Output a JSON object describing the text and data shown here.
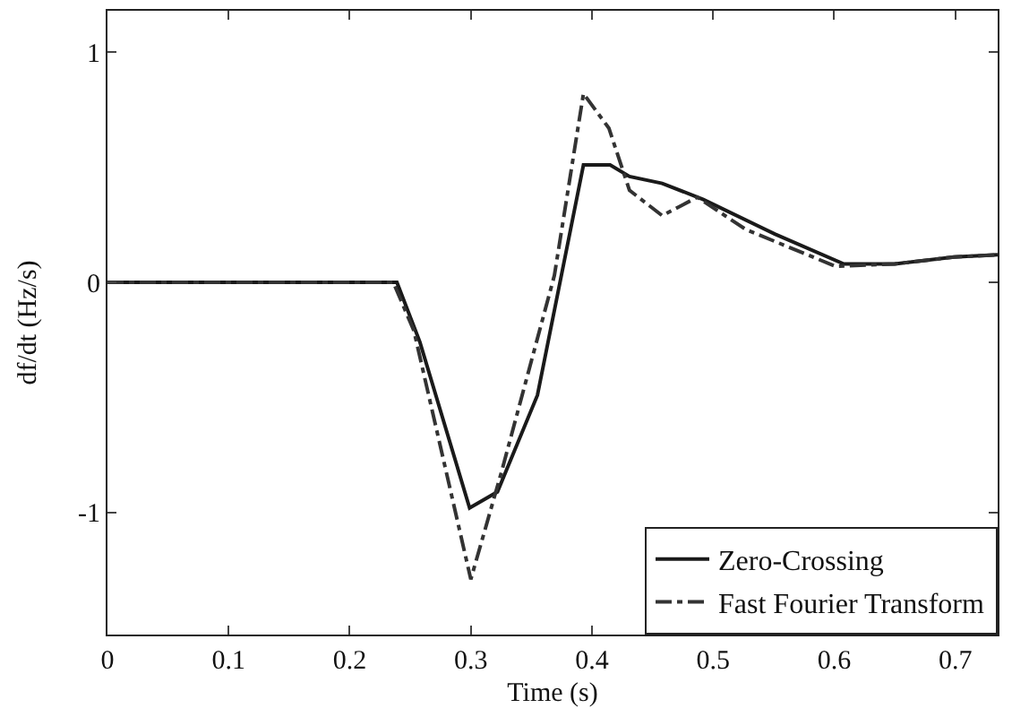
{
  "chart_data": {
    "type": "line",
    "xlabel": "Time (s)",
    "ylabel": "df/dt (Hz/s)",
    "xlim": [
      0,
      0.735
    ],
    "xticks": [
      0,
      0.1,
      0.2,
      0.3,
      0.4,
      0.5,
      0.6,
      0.7
    ],
    "ylim": [
      -1.53,
      1.18
    ],
    "yticks": [
      -1,
      0,
      1
    ],
    "grid": false,
    "legend": "bottom right",
    "marker": "none",
    "series": [
      {
        "name": "Zero-Crossing",
        "color": "#1a1a1a",
        "line_style": "solid",
        "x": [
          0,
          0.239,
          0.258,
          0.299,
          0.322,
          0.355,
          0.393,
          0.415,
          0.431,
          0.458,
          0.492,
          0.551,
          0.608,
          0.65,
          0.699,
          0.735
        ],
        "values": [
          0,
          0,
          -0.26,
          -0.98,
          -0.91,
          -0.49,
          0.51,
          0.51,
          0.46,
          0.43,
          0.36,
          0.21,
          0.08,
          0.08,
          0.11,
          0.12
        ]
      },
      {
        "name": "Fast Fourier Transform",
        "color": "#333333",
        "line_style": "dashdot",
        "x": [
          0,
          0.236,
          0.253,
          0.3,
          0.325,
          0.369,
          0.393,
          0.414,
          0.431,
          0.458,
          0.487,
          0.527,
          0.601,
          0.65,
          0.699,
          0.735
        ],
        "values": [
          0,
          0,
          -0.21,
          -1.29,
          -0.83,
          0.03,
          0.82,
          0.67,
          0.4,
          0.29,
          0.37,
          0.23,
          0.07,
          0.08,
          0.11,
          0.12
        ]
      }
    ]
  }
}
